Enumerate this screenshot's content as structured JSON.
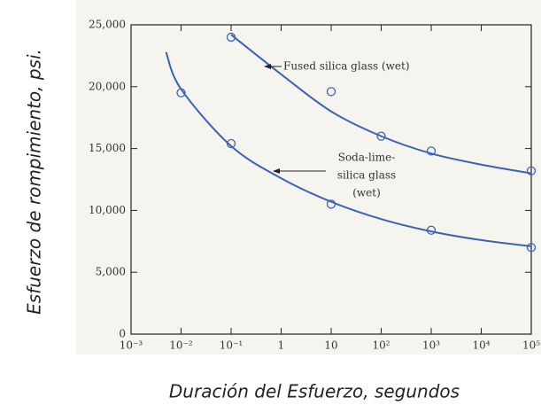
{
  "chart_data": {
    "type": "scatter",
    "xscale": "log",
    "x_label": "Duración del Esfuerzo, segundos",
    "y_label": "Esfuerzo de rompimiento, psi.",
    "xlim": [
      0.001,
      100000
    ],
    "ylim": [
      0,
      25000
    ],
    "xticks": [
      {
        "value": 0.001,
        "label": "10⁻³"
      },
      {
        "value": 0.01,
        "label": "10⁻²"
      },
      {
        "value": 0.1,
        "label": "10⁻¹"
      },
      1,
      10,
      {
        "value": 100,
        "label": "10²"
      },
      {
        "value": 1000,
        "label": "10³"
      },
      {
        "value": 10000,
        "label": "10⁴"
      },
      {
        "value": 100000,
        "label": "10⁵"
      }
    ],
    "yticks": [
      0,
      {
        "value": 5000,
        "label": "5,000"
      },
      {
        "value": 10000,
        "label": "10,000"
      },
      {
        "value": 15000,
        "label": "15,000"
      },
      {
        "value": 20000,
        "label": "20,000"
      },
      {
        "value": 25000,
        "label": "25,000"
      }
    ],
    "series": [
      {
        "style": "markers",
        "color": "#3a63b8",
        "x": [
          0.1,
          10,
          100,
          1000,
          100000
        ],
        "values": [
          24000,
          19600,
          16000,
          14800,
          13200
        ]
      },
      {
        "style": "line",
        "color": "#3a63b8",
        "x": [
          0.1,
          1,
          10,
          100,
          1000,
          10000,
          100000
        ],
        "values": [
          24200,
          21000,
          18000,
          16000,
          14600,
          13700,
          13000
        ]
      },
      {
        "style": "markers",
        "color": "#3a63b8",
        "x": [
          0.01,
          0.1,
          10,
          1000,
          100000
        ],
        "values": [
          19500,
          15400,
          10500,
          8400,
          7000
        ]
      },
      {
        "style": "line",
        "color": "#3a63b8",
        "x": [
          0.005,
          0.01,
          0.1,
          1,
          10,
          100,
          1000,
          10000,
          100000
        ],
        "values": [
          22800,
          19800,
          15200,
          12600,
          10700,
          9300,
          8300,
          7600,
          7100
        ]
      }
    ],
    "annotations": [
      {
        "lines": [
          "Fused silica glass (wet)"
        ]
      },
      {
        "lines": [
          "Soda-lime-",
          "silica glass",
          "(wet)"
        ]
      }
    ]
  }
}
